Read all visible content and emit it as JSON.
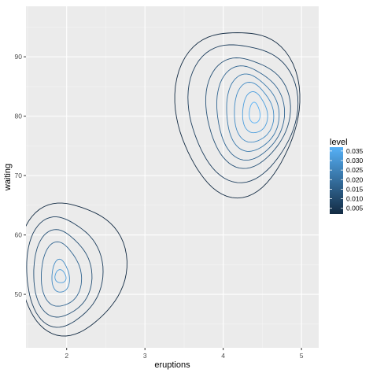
{
  "chart_data": {
    "type": "contour",
    "xlabel": "eruptions",
    "ylabel": "waiting",
    "xlim": [
      1.48,
      5.22
    ],
    "ylim": [
      41.0,
      98.5
    ],
    "x_ticks": [
      2,
      3,
      4,
      5
    ],
    "y_ticks": [
      50,
      60,
      70,
      80,
      90
    ],
    "x_minor_ticks": [
      1.5,
      2.5,
      3.5,
      4.5
    ],
    "y_minor_ticks": [
      45,
      55,
      65,
      75,
      85,
      95
    ],
    "grid": true,
    "legend": {
      "title": "level",
      "position": "right",
      "breaks": [
        "0.035",
        "0.030",
        "0.025",
        "0.020",
        "0.015",
        "0.010",
        "0.005"
      ],
      "range": [
        0.002,
        0.037
      ],
      "color_low": "#132B43",
      "color_high": "#56B1F7"
    },
    "colors": {
      "panel": "#EBEBEB",
      "grid_major": "#FFFFFF"
    },
    "peaks": [
      {
        "center": [
          4.4,
          80.5
        ],
        "contours": [
          {
            "level": 0.002,
            "rx": 0.76,
            "ry": 14.5,
            "cx": 4.18,
            "cy": 81.0
          },
          {
            "level": 0.007,
            "rx": 0.67,
            "ry": 12.0,
            "cx": 4.24,
            "cy": 81.0
          },
          {
            "level": 0.012,
            "rx": 0.52,
            "ry": 9.5,
            "cx": 4.3,
            "cy": 80.8
          },
          {
            "level": 0.017,
            "rx": 0.42,
            "ry": 8.0,
            "cx": 4.33,
            "cy": 80.6
          },
          {
            "level": 0.022,
            "rx": 0.33,
            "ry": 6.5,
            "cx": 4.36,
            "cy": 80.5
          },
          {
            "level": 0.027,
            "rx": 0.25,
            "ry": 5.0,
            "cx": 4.38,
            "cy": 80.5
          },
          {
            "level": 0.032,
            "rx": 0.16,
            "ry": 3.4,
            "cx": 4.4,
            "cy": 80.5
          },
          {
            "level": 0.037,
            "rx": 0.07,
            "ry": 1.7,
            "cx": 4.4,
            "cy": 80.5
          }
        ]
      },
      {
        "center": [
          1.92,
          53.0
        ],
        "contours": [
          {
            "level": 0.002,
            "rx": 0.66,
            "ry": 11.5,
            "cx": 2.05,
            "cy": 54.5
          },
          {
            "level": 0.007,
            "rx": 0.47,
            "ry": 9.5,
            "cx": 1.95,
            "cy": 53.8
          },
          {
            "level": 0.012,
            "rx": 0.36,
            "ry": 7.5,
            "cx": 1.93,
            "cy": 53.4
          },
          {
            "level": 0.017,
            "rx": 0.25,
            "ry": 5.5,
            "cx": 1.92,
            "cy": 53.2
          },
          {
            "level": 0.027,
            "rx": 0.11,
            "ry": 2.8,
            "cx": 1.92,
            "cy": 53.0
          },
          {
            "level": 0.032,
            "rx": 0.07,
            "ry": 1.1,
            "cx": 1.92,
            "cy": 53.0
          }
        ]
      }
    ]
  }
}
